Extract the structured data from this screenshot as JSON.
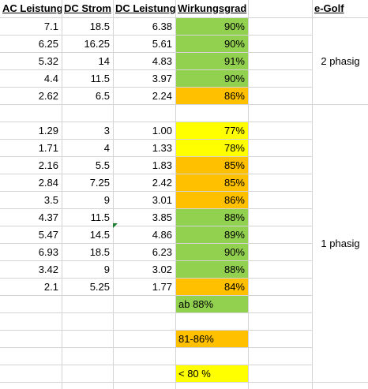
{
  "headers": [
    "AC Leistung",
    "DC Strom",
    "DC Leistung",
    "Wirkungsgrad",
    "e-Golf"
  ],
  "rows": [
    {
      "ac": "7.1",
      "dc_strom": "18.5",
      "dc_leistung": "6.38",
      "eff": "90%",
      "color": "#92d050"
    },
    {
      "ac": "6.25",
      "dc_strom": "16.25",
      "dc_leistung": "5.61",
      "eff": "90%",
      "color": "#92d050"
    },
    {
      "ac": "5.32",
      "dc_strom": "14",
      "dc_leistung": "4.83",
      "eff": "91%",
      "color": "#92d050"
    },
    {
      "ac": "4.4",
      "dc_strom": "11.5",
      "dc_leistung": "3.97",
      "eff": "90%",
      "color": "#92d050"
    },
    {
      "ac": "2.62",
      "dc_strom": "6.5",
      "dc_leistung": "2.24",
      "eff": "86%",
      "color": "#ffc000"
    },
    null,
    {
      "ac": "1.29",
      "dc_strom": "3",
      "dc_leistung": "1.00",
      "eff": "77%",
      "color": "#ffff00"
    },
    {
      "ac": "1.71",
      "dc_strom": "4",
      "dc_leistung": "1.33",
      "eff": "78%",
      "color": "#ffff00"
    },
    {
      "ac": "2.16",
      "dc_strom": "5.5",
      "dc_leistung": "1.83",
      "eff": "85%",
      "color": "#ffc000"
    },
    {
      "ac": "2.84",
      "dc_strom": "7.25",
      "dc_leistung": "2.42",
      "eff": "85%",
      "color": "#ffc000"
    },
    {
      "ac": "3.5",
      "dc_strom": "9",
      "dc_leistung": "3.01",
      "eff": "86%",
      "color": "#ffc000"
    },
    {
      "ac": "4.37",
      "dc_strom": "11.5",
      "dc_leistung": "3.85",
      "eff": "88%",
      "color": "#92d050"
    },
    {
      "ac": "5.47",
      "dc_strom": "14.5",
      "dc_leistung": "4.86",
      "eff": "89%",
      "color": "#92d050"
    },
    {
      "ac": "6.93",
      "dc_strom": "18.5",
      "dc_leistung": "6.23",
      "eff": "90%",
      "color": "#92d050"
    },
    {
      "ac": "3.42",
      "dc_strom": "9",
      "dc_leistung": "3.02",
      "eff": "88%",
      "color": "#92d050"
    },
    {
      "ac": "2.1",
      "dc_strom": "5.25",
      "dc_leistung": "1.77",
      "eff": "84%",
      "color": "#ffc000"
    }
  ],
  "groups": {
    "three_phase": "2 phasig",
    "one_phase": "1 phasig"
  },
  "legend": [
    {
      "label": "ab 88%",
      "color": "#92d050"
    },
    {
      "label": "81-86%",
      "color": "#ffc000"
    },
    {
      "label": "< 80 %",
      "color": "#ffff00"
    }
  ],
  "colors": {
    "green": "#92d050",
    "orange": "#ffc000",
    "yellow": "#ffff00",
    "gridline": "#d4d4d4"
  }
}
